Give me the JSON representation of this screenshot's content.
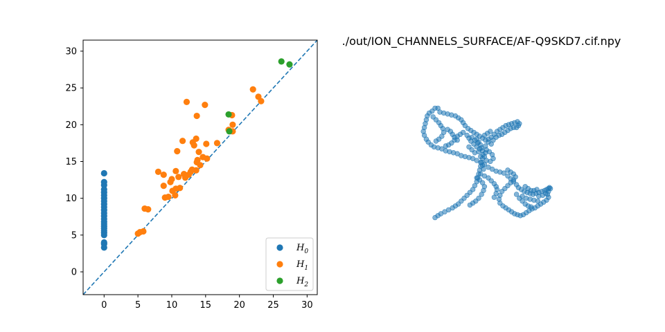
{
  "chart_data": [
    {
      "type": "scatter",
      "title": "",
      "xlabel": "",
      "ylabel": "",
      "xlim": [
        -3.1,
        31.5
      ],
      "ylim": [
        -3.1,
        31.5
      ],
      "xticks": [
        "0",
        "5",
        "10",
        "15",
        "20",
        "25",
        "30"
      ],
      "yticks": [
        "0",
        "5",
        "10",
        "15",
        "20",
        "25",
        "30"
      ],
      "xtick_values": [
        0,
        5,
        10,
        15,
        20,
        25,
        30
      ],
      "ytick_values": [
        0,
        5,
        10,
        15,
        20,
        25,
        30
      ],
      "grid": false,
      "legend": "lower-right",
      "diagonal": {
        "style": "dashed",
        "color": "#1f77b4"
      },
      "series": [
        {
          "name": "H",
          "sub": "0",
          "color": "#1f77b4",
          "points": [
            [
              0,
              13.4
            ],
            [
              0,
              12.2
            ],
            [
              0,
              11.8
            ],
            [
              0,
              11.2
            ],
            [
              0,
              10.8
            ],
            [
              0,
              10.4
            ],
            [
              0,
              10.0
            ],
            [
              0,
              9.6
            ],
            [
              0,
              9.2
            ],
            [
              0,
              8.8
            ],
            [
              0,
              8.4
            ],
            [
              0,
              8.0
            ],
            [
              0,
              7.6
            ],
            [
              0,
              7.2
            ],
            [
              0,
              6.8
            ],
            [
              0,
              6.5
            ],
            [
              0,
              6.2
            ],
            [
              0,
              5.9
            ],
            [
              0,
              5.6
            ],
            [
              0,
              5.3
            ],
            [
              0,
              5.0
            ],
            [
              0,
              4.0
            ],
            [
              0,
              3.8
            ],
            [
              0,
              3.3
            ]
          ]
        },
        {
          "name": "H",
          "sub": "1",
          "color": "#ff7f0e",
          "points": [
            [
              5.0,
              5.2
            ],
            [
              5.3,
              5.4
            ],
            [
              5.8,
              5.5
            ],
            [
              6.0,
              8.6
            ],
            [
              6.5,
              8.5
            ],
            [
              8.0,
              13.6
            ],
            [
              8.8,
              13.2
            ],
            [
              8.8,
              11.7
            ],
            [
              9.0,
              10.1
            ],
            [
              9.5,
              10.2
            ],
            [
              9.8,
              12.2
            ],
            [
              10.0,
              12.6
            ],
            [
              10.1,
              11.0
            ],
            [
              10.5,
              10.4
            ],
            [
              10.6,
              13.7
            ],
            [
              10.6,
              11.3
            ],
            [
              10.8,
              16.4
            ],
            [
              11.0,
              12.9
            ],
            [
              11.2,
              11.4
            ],
            [
              11.6,
              17.8
            ],
            [
              11.8,
              13.3
            ],
            [
              12.0,
              12.8
            ],
            [
              12.2,
              23.1
            ],
            [
              12.5,
              13.2
            ],
            [
              12.8,
              13.6
            ],
            [
              13.0,
              13.9
            ],
            [
              13.1,
              17.6
            ],
            [
              13.3,
              17.2
            ],
            [
              13.6,
              18.1
            ],
            [
              13.6,
              13.8
            ],
            [
              13.7,
              14.9
            ],
            [
              13.7,
              21.2
            ],
            [
              13.8,
              15.2
            ],
            [
              14.0,
              16.3
            ],
            [
              14.2,
              14.5
            ],
            [
              14.6,
              15.6
            ],
            [
              14.9,
              22.7
            ],
            [
              15.1,
              17.4
            ],
            [
              15.2,
              15.4
            ],
            [
              16.7,
              17.5
            ],
            [
              18.4,
              19.3
            ],
            [
              18.9,
              21.3
            ],
            [
              19.0,
              19.1
            ],
            [
              19.0,
              20.0
            ],
            [
              22.0,
              24.8
            ],
            [
              22.8,
              23.8
            ],
            [
              23.2,
              23.2
            ]
          ]
        },
        {
          "name": "H",
          "sub": "2",
          "color": "#2ca02c",
          "points": [
            [
              18.4,
              21.4
            ],
            [
              18.5,
              19.1
            ],
            [
              26.2,
              28.6
            ],
            [
              27.4,
              28.2
            ]
          ]
        }
      ]
    },
    {
      "type": "scatter",
      "title": "./out/ION_CHANNELS_SURFACE/AF-Q9SKD7.cif.npy",
      "projection": "3d-point-cloud",
      "axes_visible": false,
      "color": "#1f77b4",
      "points": [
        [
          -2.6,
          2.2
        ],
        [
          -2.75,
          2.2
        ],
        [
          -2.9,
          2.05
        ],
        [
          -3.05,
          1.95
        ],
        [
          -3.15,
          1.8
        ],
        [
          -3.2,
          1.6
        ],
        [
          -3.25,
          1.4
        ],
        [
          -3.3,
          1.2
        ],
        [
          -3.35,
          1.0
        ],
        [
          -3.3,
          0.8
        ],
        [
          -3.2,
          0.6
        ],
        [
          -3.1,
          0.45
        ],
        [
          -2.95,
          0.3
        ],
        [
          -2.8,
          0.2
        ],
        [
          -2.6,
          0.15
        ],
        [
          -2.4,
          0.1
        ],
        [
          -2.2,
          0.0
        ],
        [
          -2.0,
          -0.05
        ],
        [
          -1.8,
          -0.1
        ],
        [
          -1.6,
          -0.15
        ],
        [
          -1.4,
          -0.25
        ],
        [
          -1.2,
          -0.3
        ],
        [
          -1.0,
          -0.35
        ],
        [
          -0.8,
          -0.4
        ],
        [
          -0.6,
          -0.5
        ],
        [
          -0.4,
          -0.6
        ],
        [
          -0.3,
          -0.75
        ],
        [
          -0.25,
          -0.95
        ],
        [
          -2.5,
          2.0
        ],
        [
          -2.3,
          1.95
        ],
        [
          -2.1,
          1.9
        ],
        [
          -1.9,
          1.85
        ],
        [
          -1.7,
          1.8
        ],
        [
          -1.55,
          1.7
        ],
        [
          -1.4,
          1.6
        ],
        [
          -1.3,
          1.45
        ],
        [
          -1.2,
          1.3
        ],
        [
          -1.05,
          1.15
        ],
        [
          -0.9,
          1.05
        ],
        [
          -0.75,
          0.95
        ],
        [
          -0.6,
          0.85
        ],
        [
          -0.45,
          0.75
        ],
        [
          -0.3,
          0.65
        ],
        [
          -0.15,
          0.55
        ],
        [
          0.0,
          0.45
        ],
        [
          0.15,
          0.35
        ],
        [
          -2.85,
          1.75
        ],
        [
          -2.7,
          1.6
        ],
        [
          -2.55,
          1.45
        ],
        [
          -2.45,
          1.3
        ],
        [
          -2.35,
          1.15
        ],
        [
          -2.3,
          0.95
        ],
        [
          -2.4,
          0.75
        ],
        [
          -2.55,
          0.6
        ],
        [
          -2.7,
          0.5
        ],
        [
          -2.1,
          1.1
        ],
        [
          -1.95,
          1.0
        ],
        [
          -1.85,
          0.85
        ],
        [
          -1.75,
          0.7
        ],
        [
          -1.6,
          0.55
        ],
        [
          -0.6,
          0.6
        ],
        [
          -0.5,
          0.45
        ],
        [
          -0.4,
          0.3
        ],
        [
          -0.35,
          0.15
        ],
        [
          -0.3,
          0.0
        ],
        [
          -0.28,
          -0.2
        ],
        [
          -0.3,
          -0.4
        ],
        [
          -0.35,
          -0.6
        ],
        [
          -0.4,
          -0.8
        ],
        [
          -0.45,
          -1.0
        ],
        [
          -0.5,
          -1.2
        ],
        [
          -0.55,
          -1.4
        ],
        [
          -0.6,
          -1.6
        ],
        [
          -0.7,
          -1.8
        ],
        [
          -0.8,
          -2.0
        ],
        [
          -0.95,
          -2.15
        ],
        [
          -1.1,
          -2.3
        ],
        [
          -1.25,
          -2.45
        ],
        [
          -1.4,
          -2.6
        ],
        [
          -1.55,
          -2.75
        ],
        [
          -1.7,
          -2.85
        ],
        [
          -1.85,
          -2.95
        ],
        [
          -2.05,
          -3.05
        ],
        [
          -2.25,
          -3.15
        ],
        [
          -2.45,
          -3.25
        ],
        [
          -2.6,
          -3.35
        ],
        [
          -2.75,
          -3.45
        ],
        [
          0.0,
          0.6
        ],
        [
          0.15,
          0.7
        ],
        [
          0.3,
          0.85
        ],
        [
          0.45,
          1.0
        ],
        [
          0.6,
          1.1
        ],
        [
          0.75,
          1.2
        ],
        [
          0.9,
          1.3
        ],
        [
          1.05,
          1.35
        ],
        [
          1.2,
          1.4
        ],
        [
          1.35,
          1.45
        ],
        [
          1.5,
          1.5
        ],
        [
          1.6,
          1.4
        ],
        [
          1.55,
          1.3
        ],
        [
          1.45,
          1.2
        ],
        [
          1.3,
          1.2
        ],
        [
          1.15,
          1.15
        ],
        [
          1.0,
          1.05
        ],
        [
          0.85,
          0.95
        ],
        [
          0.7,
          0.85
        ],
        [
          0.55,
          0.8
        ],
        [
          0.4,
          0.7
        ],
        [
          0.25,
          0.55
        ],
        [
          -0.9,
          0.5
        ],
        [
          -0.75,
          0.35
        ],
        [
          -0.6,
          0.2
        ],
        [
          -0.45,
          0.1
        ],
        [
          -1.0,
          0.2
        ],
        [
          -0.85,
          0.05
        ],
        [
          -0.7,
          -0.1
        ],
        [
          -0.2,
          0.8
        ],
        [
          -0.05,
          0.9
        ],
        [
          0.1,
          1.0
        ],
        [
          -0.2,
          -0.7
        ],
        [
          0.0,
          -0.85
        ],
        [
          0.2,
          -0.95
        ],
        [
          0.4,
          -1.05
        ],
        [
          0.6,
          -1.1
        ],
        [
          0.8,
          -1.15
        ],
        [
          1.0,
          -1.3
        ],
        [
          1.15,
          -1.45
        ],
        [
          1.3,
          -1.6
        ],
        [
          1.45,
          -1.75
        ],
        [
          1.55,
          -1.9
        ],
        [
          1.7,
          -2.0
        ],
        [
          1.85,
          -2.1
        ],
        [
          2.0,
          -2.15
        ],
        [
          2.15,
          -2.2
        ],
        [
          2.3,
          -2.25
        ],
        [
          2.45,
          -2.2
        ],
        [
          2.6,
          -2.15
        ],
        [
          2.75,
          -2.1
        ],
        [
          2.9,
          -2.05
        ],
        [
          3.0,
          -2.0
        ],
        [
          3.1,
          -1.95
        ],
        [
          3.15,
          -1.9
        ],
        [
          3.2,
          -1.95
        ],
        [
          3.1,
          -2.1
        ],
        [
          2.95,
          -2.2
        ],
        [
          2.8,
          -2.3
        ],
        [
          2.6,
          -2.35
        ],
        [
          1.0,
          -1.0
        ],
        [
          1.15,
          -1.1
        ],
        [
          1.3,
          -1.2
        ],
        [
          1.4,
          -1.35
        ],
        [
          1.3,
          -1.5
        ],
        [
          1.15,
          -1.65
        ],
        [
          1.0,
          -1.8
        ],
        [
          0.85,
          -1.95
        ],
        [
          0.7,
          -2.1
        ],
        [
          0.6,
          -2.3
        ],
        [
          0.55,
          -2.5
        ],
        [
          0.6,
          -2.7
        ],
        [
          0.75,
          -2.85
        ],
        [
          0.9,
          -2.95
        ],
        [
          1.05,
          -3.05
        ],
        [
          1.2,
          -3.15
        ],
        [
          1.35,
          -3.25
        ],
        [
          1.5,
          -3.3
        ],
        [
          1.65,
          -3.35
        ],
        [
          1.8,
          -3.3
        ],
        [
          1.95,
          -3.2
        ],
        [
          2.1,
          -3.1
        ],
        [
          2.25,
          -3.0
        ],
        [
          2.4,
          -2.95
        ],
        [
          2.55,
          -2.85
        ],
        [
          2.7,
          -2.75
        ],
        [
          2.85,
          -2.65
        ],
        [
          3.0,
          -2.55
        ],
        [
          3.1,
          -2.4
        ],
        [
          3.05,
          -2.25
        ],
        [
          -0.6,
          -1.4
        ],
        [
          -0.45,
          -1.5
        ],
        [
          -0.3,
          -1.65
        ],
        [
          -0.2,
          -1.85
        ],
        [
          -0.25,
          -2.05
        ],
        [
          -0.35,
          -2.25
        ],
        [
          -0.5,
          -2.45
        ],
        [
          -0.65,
          -2.6
        ],
        [
          -0.8,
          -2.7
        ],
        [
          -0.95,
          -2.8
        ],
        [
          -0.4,
          -1.2
        ],
        [
          -0.2,
          -1.3
        ],
        [
          0.0,
          -1.4
        ],
        [
          0.15,
          -1.55
        ],
        [
          0.3,
          -1.7
        ],
        [
          0.4,
          -1.85
        ],
        [
          0.45,
          -2.0
        ],
        [
          0.4,
          -2.2
        ],
        [
          0.3,
          -2.4
        ],
        [
          1.9,
          -1.85
        ],
        [
          2.05,
          -1.95
        ],
        [
          2.2,
          -2.05
        ],
        [
          2.35,
          -2.05
        ],
        [
          2.5,
          -2.0
        ],
        [
          1.75,
          -2.35
        ],
        [
          1.95,
          -2.45
        ],
        [
          2.15,
          -2.5
        ],
        [
          2.35,
          -2.55
        ],
        [
          2.55,
          -2.6
        ],
        [
          1.45,
          -2.25
        ],
        [
          1.6,
          -2.45
        ],
        [
          1.75,
          -2.6
        ],
        [
          1.9,
          -2.75
        ],
        [
          2.05,
          -2.85
        ],
        [
          2.2,
          -2.9
        ],
        [
          -1.1,
          0.8
        ],
        [
          -1.0,
          0.65
        ],
        [
          -0.85,
          0.7
        ],
        [
          -0.7,
          0.55
        ],
        [
          -0.55,
          0.4
        ],
        [
          -0.15,
          0.25
        ],
        [
          -0.1,
          0.05
        ],
        [
          -0.15,
          -0.1
        ],
        [
          -0.2,
          -0.3
        ],
        [
          -0.1,
          -0.5
        ],
        [
          0.1,
          -0.55
        ],
        [
          0.25,
          -0.4
        ],
        [
          0.2,
          -0.2
        ],
        [
          0.05,
          -0.05
        ],
        [
          -0.5,
          -0.05
        ],
        [
          -0.4,
          -0.3
        ],
        [
          -1.3,
          0.95
        ],
        [
          -1.45,
          0.85
        ],
        [
          -1.6,
          0.75
        ],
        [
          -1.75,
          0.55
        ],
        [
          -1.9,
          0.4
        ],
        [
          -2.05,
          0.3
        ],
        [
          -2.2,
          0.25
        ]
      ]
    }
  ]
}
